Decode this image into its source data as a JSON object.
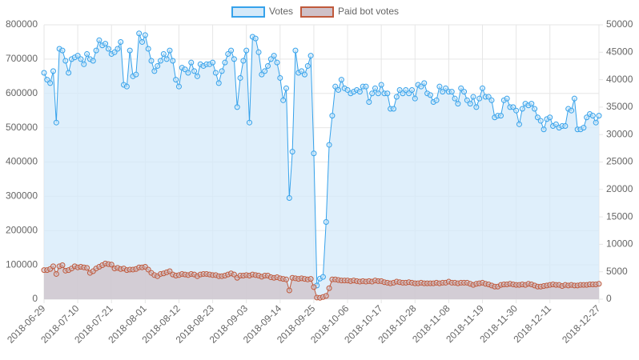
{
  "chart_data": {
    "type": "line",
    "categories": [
      "2018-06-29",
      null,
      null,
      null,
      null,
      null,
      null,
      null,
      null,
      null,
      null,
      "2018-07-10",
      null,
      null,
      null,
      null,
      null,
      null,
      null,
      null,
      null,
      null,
      "2018-07-21",
      null,
      null,
      null,
      null,
      null,
      null,
      null,
      null,
      null,
      null,
      "2018-08-01",
      null,
      null,
      null,
      null,
      null,
      null,
      null,
      null,
      null,
      null,
      "2018-08-12",
      null,
      null,
      null,
      null,
      null,
      null,
      null,
      null,
      null,
      null,
      "2018-08-23",
      null,
      null,
      null,
      null,
      null,
      null,
      null,
      null,
      null,
      null,
      "2018-09-03",
      null,
      null,
      null,
      null,
      null,
      null,
      null,
      null,
      null,
      null,
      "2018-09-14",
      null,
      null,
      null,
      null,
      null,
      null,
      null,
      null,
      null,
      null,
      "2018-09-25",
      null,
      null,
      null,
      null,
      null,
      null,
      null,
      null,
      null,
      null,
      "2018-10-06",
      null,
      null,
      null,
      null,
      null,
      null,
      null,
      null,
      null,
      null,
      "2018-10-17",
      null,
      null,
      null,
      null,
      null,
      null,
      null,
      null,
      null,
      null,
      "2018-10-28",
      null,
      null,
      null,
      null,
      null,
      null,
      null,
      null,
      null,
      null,
      "2018-11-08",
      null,
      null,
      null,
      null,
      null,
      null,
      null,
      null,
      null,
      null,
      "2018-11-19",
      null,
      null,
      null,
      null,
      null,
      null,
      null,
      null,
      null,
      null,
      "2018-11-30",
      null,
      null,
      null,
      null,
      null,
      null,
      null,
      null,
      null,
      null,
      "2018-12-11",
      null,
      null,
      null,
      null,
      null,
      null,
      null,
      null,
      null,
      null,
      null,
      null,
      null,
      null,
      null,
      "2018-12-27"
    ],
    "series": [
      {
        "name": "Votes",
        "color": "#36a2eb",
        "fill": "#d4e9f9",
        "values": [
          660000,
          640000,
          630000,
          665000,
          515000,
          730000,
          725000,
          695000,
          660000,
          700000,
          705000,
          710000,
          700000,
          685000,
          715000,
          700000,
          695000,
          725000,
          755000,
          740000,
          745000,
          730000,
          715000,
          720000,
          730000,
          750000,
          625000,
          620000,
          725000,
          650000,
          655000,
          775000,
          750000,
          770000,
          730000,
          695000,
          665000,
          680000,
          695000,
          715000,
          700000,
          725000,
          695000,
          640000,
          620000,
          675000,
          670000,
          660000,
          690000,
          665000,
          650000,
          685000,
          680000,
          685000,
          685000,
          690000,
          660000,
          630000,
          665000,
          690000,
          715000,
          725000,
          700000,
          560000,
          645000,
          695000,
          725000,
          515000,
          765000,
          760000,
          720000,
          655000,
          665000,
          680000,
          700000,
          710000,
          690000,
          645000,
          580000,
          615000,
          295000,
          430000,
          725000,
          660000,
          665000,
          655000,
          680000,
          710000,
          425000,
          40000,
          60000,
          65000,
          225000,
          450000,
          535000,
          620000,
          610000,
          640000,
          615000,
          610000,
          600000,
          605000,
          610000,
          605000,
          620000,
          620000,
          575000,
          600000,
          615000,
          600000,
          625000,
          600000,
          600000,
          555000,
          555000,
          590000,
          610000,
          600000,
          610000,
          600000,
          610000,
          585000,
          625000,
          620000,
          630000,
          600000,
          595000,
          575000,
          580000,
          620000,
          605000,
          615000,
          605000,
          605000,
          585000,
          570000,
          615000,
          605000,
          580000,
          570000,
          590000,
          560000,
          585000,
          615000,
          590000,
          590000,
          580000,
          530000,
          535000,
          535000,
          580000,
          585000,
          560000,
          560000,
          550000,
          510000,
          555000,
          570000,
          565000,
          570000,
          555000,
          530000,
          520000,
          495000,
          525000,
          530000,
          505000,
          510000,
          500000,
          505000,
          505000,
          555000,
          550000,
          585000,
          495000,
          495000,
          500000,
          530000,
          540000,
          535000,
          515000,
          535000
        ]
      },
      {
        "name": "Paid bot votes",
        "color": "#c0593b",
        "fill": "#cfc1c8",
        "axis": "y2",
        "values": [
          5300,
          5300,
          5500,
          6000,
          4600,
          6000,
          6200,
          5200,
          5300,
          5600,
          6000,
          5800,
          5900,
          5800,
          5700,
          4800,
          5100,
          5600,
          5900,
          6200,
          6500,
          6400,
          6300,
          5600,
          5700,
          5500,
          5600,
          5300,
          5400,
          5400,
          5500,
          5800,
          5800,
          5900,
          5400,
          4800,
          4400,
          4200,
          4600,
          4700,
          4900,
          5100,
          4500,
          4300,
          4400,
          4600,
          4500,
          4400,
          4600,
          4500,
          4200,
          4500,
          4600,
          4600,
          4500,
          4400,
          4400,
          4200,
          4200,
          4300,
          4500,
          4700,
          4500,
          3900,
          4300,
          4300,
          4400,
          4300,
          4500,
          4400,
          4300,
          4100,
          4300,
          4300,
          4000,
          3900,
          4000,
          3800,
          3700,
          3600,
          1600,
          3900,
          3800,
          3700,
          3800,
          3700,
          3600,
          3700,
          2200,
          300,
          250,
          400,
          600,
          2000,
          3600,
          3600,
          3500,
          3400,
          3400,
          3400,
          3300,
          3400,
          3300,
          3200,
          3300,
          3200,
          3300,
          3200,
          3400,
          3300,
          3300,
          3100,
          3000,
          2900,
          3000,
          3200,
          3100,
          3000,
          3000,
          3100,
          3000,
          2900,
          2900,
          3000,
          2900,
          2900,
          2900,
          2900,
          3000,
          2900,
          3000,
          3000,
          3200,
          3000,
          3000,
          2900,
          3000,
          3000,
          3000,
          2800,
          2600,
          2800,
          2900,
          3000,
          2800,
          2700,
          2500,
          2300,
          2300,
          2600,
          2700,
          2700,
          2800,
          2700,
          2600,
          2600,
          2700,
          2600,
          2800,
          2700,
          2500,
          2300,
          2300,
          2400,
          2500,
          2600,
          2700,
          2600,
          2600,
          2400,
          2600,
          2500,
          2600,
          2500,
          2500,
          2600,
          2600,
          2600,
          2700,
          2700,
          2700,
          2800
        ]
      }
    ],
    "ylim": [
      0,
      800000
    ],
    "yticks": [
      0,
      100000,
      200000,
      300000,
      400000,
      500000,
      600000,
      700000,
      800000
    ],
    "y2lim": [
      0,
      50000
    ],
    "y2ticks": [
      0,
      5000,
      10000,
      15000,
      20000,
      25000,
      30000,
      35000,
      40000,
      45000,
      50000
    ],
    "grid": true,
    "legend": "top"
  }
}
